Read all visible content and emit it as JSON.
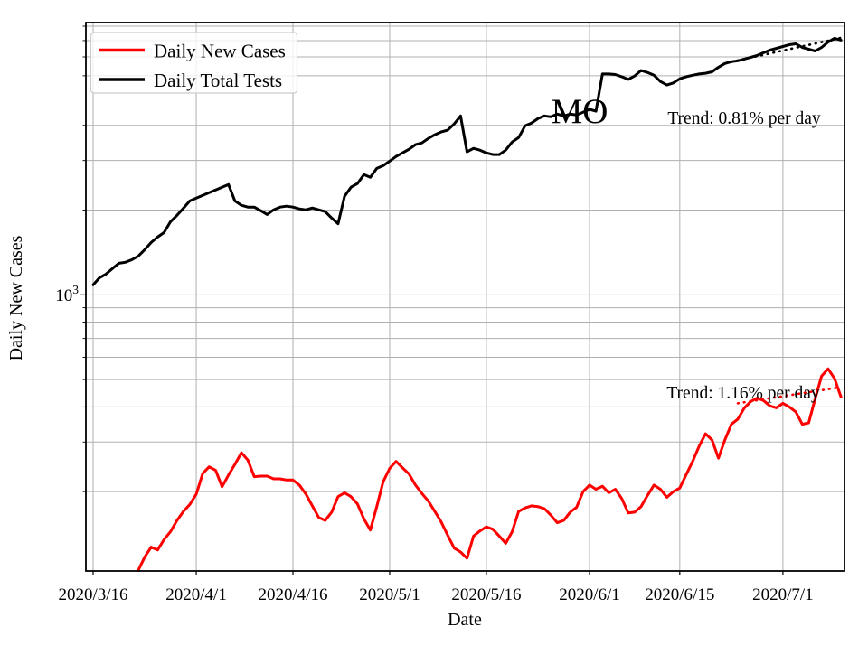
{
  "figure": {
    "state_annotation": "MO",
    "xlabel": "Date",
    "ylabel": "Daily New Cases",
    "y_major_tick_label": {
      "base": "10",
      "exp": "3"
    }
  },
  "legend": {
    "entries": [
      {
        "label": "Daily New Cases",
        "color": "#ff0000"
      },
      {
        "label": "Daily Total Tests",
        "color": "#000000"
      }
    ]
  },
  "annotations": {
    "tests_trend_label": "Trend: 0.81% per day",
    "cases_trend_label": "Trend: 1.16% per day"
  },
  "colors": {
    "cases": "#ff0000",
    "tests": "#000000",
    "grid": "#b0b0b0",
    "spine": "#000000",
    "legend_border": "#cccccc"
  },
  "chart_data": {
    "type": "line",
    "yscale": "log",
    "grid": true,
    "start_date": "2020-03-16",
    "ylim": [
      104.5,
      9270
    ],
    "xlim_days": [
      -1.12,
      116.55
    ],
    "x_ticks": [
      {
        "label": "2020/3/16",
        "day": 0
      },
      {
        "label": "2020/4/1",
        "day": 16
      },
      {
        "label": "2020/4/16",
        "day": 31
      },
      {
        "label": "2020/5/1",
        "day": 46
      },
      {
        "label": "2020/5/16",
        "day": 61
      },
      {
        "label": "2020/6/1",
        "day": 77
      },
      {
        "label": "2020/6/15",
        "day": 91
      },
      {
        "label": "2020/7/1",
        "day": 107
      }
    ],
    "y_major_gridlines": [
      1000
    ],
    "y_minor_gridlines": [
      200,
      300,
      400,
      500,
      600,
      700,
      800,
      900,
      2000,
      3000,
      4000,
      5000,
      6000,
      7000,
      8000,
      9000
    ],
    "series": [
      {
        "name": "Daily Total Tests",
        "color": "#000000",
        "start_day": 0,
        "values": [
          1085,
          1150,
          1185,
          1240,
          1295,
          1305,
          1333,
          1373,
          1446,
          1535,
          1604,
          1664,
          1817,
          1915,
          2031,
          2156,
          2205,
          2255,
          2306,
          2358,
          2412,
          2466,
          2156,
          2080,
          2050,
          2050,
          1990,
          1930,
          2005,
          2050,
          2065,
          2050,
          2020,
          2005,
          2035,
          2005,
          1975,
          1875,
          1790,
          2240,
          2412,
          2484,
          2674,
          2616,
          2812,
          2876,
          2986,
          3100,
          3195,
          3290,
          3415,
          3465,
          3595,
          3705,
          3790,
          3845,
          4045,
          4320,
          3220,
          3315,
          3265,
          3195,
          3150,
          3150,
          3265,
          3490,
          3620,
          3985,
          4075,
          4225,
          4320,
          4290,
          4385,
          4320,
          4385,
          4355,
          4455,
          4560,
          4490,
          6090,
          6090,
          6060,
          5955,
          5825,
          5990,
          6265,
          6160,
          6025,
          5725,
          5565,
          5660,
          5855,
          5955,
          6025,
          6090,
          6125,
          6195,
          6435,
          6635,
          6730,
          6780,
          6880,
          6980,
          7085,
          7240,
          7400,
          7510,
          7620,
          7735,
          7790,
          7565,
          7455,
          7345,
          7565,
          7905,
          8150,
          8030
        ]
      },
      {
        "name": "Daily New Cases",
        "color": "#ff0000",
        "start_day": 7,
        "values": [
          105,
          117,
          127,
          124,
          135,
          144,
          158,
          170,
          180,
          196,
          232,
          245,
          238,
          208,
          229,
          250,
          275,
          259,
          226,
          227,
          227,
          222,
          222,
          220,
          220,
          211,
          196,
          178,
          162,
          158,
          169,
          192,
          198,
          192,
          181,
          160,
          146,
          177,
          217,
          242,
          256,
          243,
          231,
          211,
          197,
          185,
          170,
          156,
          140,
          126,
          122,
          116,
          139,
          145,
          150,
          147,
          139,
          131,
          144,
          170,
          175,
          178,
          177,
          174,
          165,
          155,
          158,
          169,
          176,
          200,
          211,
          204,
          209,
          198,
          204,
          189,
          168,
          169,
          177,
          194,
          211,
          204,
          191,
          200,
          206,
          230,
          256,
          290,
          321,
          305,
          263,
          305,
          347,
          362,
          396,
          418,
          430,
          421,
          403,
          397,
          412,
          400,
          384,
          347,
          351,
          428,
          515,
          546,
          505,
          434
        ]
      }
    ],
    "trends": [
      {
        "name": "tests-trend",
        "color": "#000000",
        "rate_per_day_pct": 0.81,
        "start_day": 99,
        "end_day": 116,
        "start_value": 6720,
        "end_value": 8180
      },
      {
        "name": "cases-trend",
        "color": "#ff0000",
        "rate_per_day_pct": 1.16,
        "start_day": 100,
        "end_day": 116,
        "start_value": 412,
        "end_value": 470
      }
    ]
  }
}
